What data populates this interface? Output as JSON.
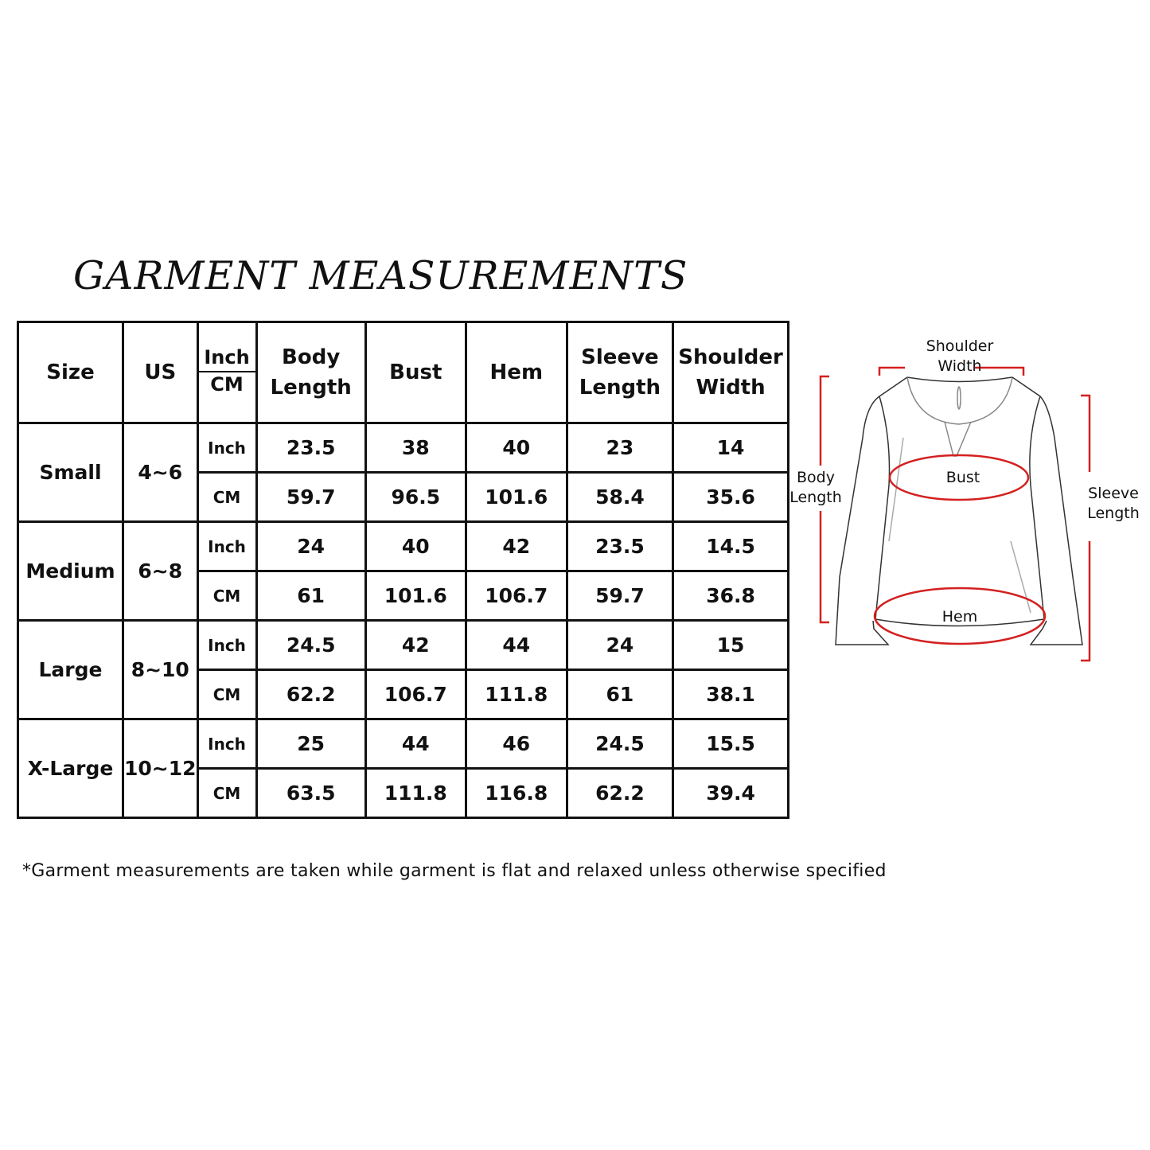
{
  "title": "GARMENT MEASUREMENTS",
  "table": {
    "headers": {
      "size": "Size",
      "us": "US",
      "unit_inch": "Inch",
      "unit_cm": "CM",
      "body_length": "Body Length",
      "bust": "Bust",
      "hem": "Hem",
      "sleeve_length": "Sleeve Length",
      "shoulder_width": "Shoulder Width"
    },
    "rows": [
      {
        "size": "Small",
        "us": "4~6",
        "inch": {
          "unit": "Inch",
          "values": [
            "23.5",
            "38",
            "40",
            "23",
            "14"
          ]
        },
        "cm": {
          "unit": "CM",
          "values": [
            "59.7",
            "96.5",
            "101.6",
            "58.4",
            "35.6"
          ]
        }
      },
      {
        "size": "Medium",
        "us": "6~8",
        "inch": {
          "unit": "Inch",
          "values": [
            "24",
            "40",
            "42",
            "23.5",
            "14.5"
          ]
        },
        "cm": {
          "unit": "CM",
          "values": [
            "61",
            "101.6",
            "106.7",
            "59.7",
            "36.8"
          ]
        }
      },
      {
        "size": "Large",
        "us": "8~10",
        "inch": {
          "unit": "Inch",
          "values": [
            "24.5",
            "42",
            "44",
            "24",
            "15"
          ]
        },
        "cm": {
          "unit": "CM",
          "values": [
            "62.2",
            "106.7",
            "111.8",
            "61",
            "38.1"
          ]
        }
      },
      {
        "size": "X-Large",
        "us": "10~12",
        "inch": {
          "unit": "Inch",
          "values": [
            "25",
            "44",
            "46",
            "24.5",
            "15.5"
          ]
        },
        "cm": {
          "unit": "CM",
          "values": [
            "63.5",
            "111.8",
            "116.8",
            "62.2",
            "39.4"
          ]
        }
      }
    ]
  },
  "footnote": "*Garment measurements are taken while garment is flat and relaxed unless otherwise specified",
  "diagram": {
    "shoulder_width": "Shoulder Width",
    "body_length": "Body Length",
    "bust": "Bust",
    "sleeve_length": "Sleeve Length",
    "hem": "Hem",
    "marker_color": "#d42020"
  }
}
